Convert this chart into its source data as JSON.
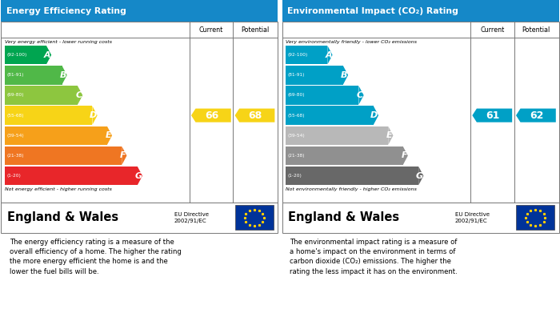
{
  "left_title": "Energy Efficiency Rating",
  "right_title": "Environmental Impact (CO₂) Rating",
  "title_bg": "#1588c8",
  "bands": [
    {
      "label": "A",
      "range": "(92-100)",
      "wf": 0.255
    },
    {
      "label": "B",
      "range": "(81-91)",
      "wf": 0.34
    },
    {
      "label": "C",
      "range": "(69-80)",
      "wf": 0.425
    },
    {
      "label": "D",
      "range": "(55-68)",
      "wf": 0.505
    },
    {
      "label": "E",
      "range": "(39-54)",
      "wf": 0.585
    },
    {
      "label": "F",
      "range": "(21-38)",
      "wf": 0.665
    },
    {
      "label": "G",
      "range": "(1-20)",
      "wf": 0.75
    }
  ],
  "energy_colors": [
    "#00a550",
    "#50b848",
    "#8dc63f",
    "#f7d417",
    "#f6a01a",
    "#ef7622",
    "#e8262a"
  ],
  "co2_colors": [
    "#00a0c6",
    "#00a0c6",
    "#00a0c6",
    "#00a0c6",
    "#b8b8b8",
    "#909090",
    "#686868"
  ],
  "current_energy": 66,
  "potential_energy": 68,
  "current_co2": 61,
  "potential_co2": 62,
  "arrow_color_energy": "#f7d417",
  "arrow_color_co2": "#00a0c6",
  "left_footer_text": "The energy efficiency rating is a measure of the\noverall efficiency of a home. The higher the rating\nthe more energy efficient the home is and the\nlower the fuel bills will be.",
  "right_footer_text": "The environmental impact rating is a measure of\na home's impact on the environment in terms of\ncarbon dioxide (CO₂) emissions. The higher the\nrating the less impact it has on the environment.",
  "england_wales": "England & Wales",
  "eu_directive": "EU Directive\n2002/91/EC",
  "header_top_energy": "Very energy efficient - lower running costs",
  "header_top_co2": "Very environmentally friendly - lower CO₂ emissions",
  "footer_bottom_energy": "Not energy efficient - higher running costs",
  "footer_bottom_co2": "Not environmentally friendly - higher CO₂ emissions"
}
